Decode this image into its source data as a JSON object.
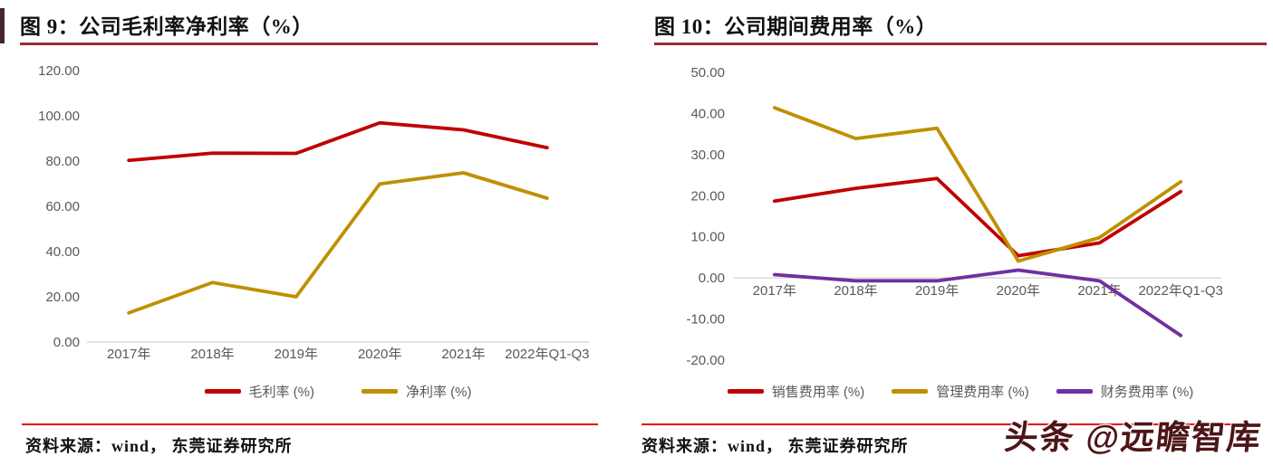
{
  "watermark": {
    "text": "头条 @远瞻智库",
    "color": "#4d1518"
  },
  "colors": {
    "title_underline": "#9c2b31",
    "source_divider": "#e8000d",
    "axis_line": "#d2d2d2",
    "tick_text": "#595959",
    "red_series": "#c00000",
    "gold_series": "#bf9000",
    "purple_series": "#7030a0"
  },
  "panels": [
    {
      "title": "图 9：公司毛利率净利率（%）",
      "source": "资料来源：wind， 东莞证券研究所"
    },
    {
      "title": "图 10：公司期间费用率（%）",
      "source": "资料来源：wind， 东莞证券研究所"
    }
  ],
  "chart_data": [
    {
      "type": "line",
      "title": "公司毛利率净利率（%）",
      "categories": [
        "2017年",
        "2018年",
        "2019年",
        "2020年",
        "2021年",
        "2022年Q1-Q3"
      ],
      "series": [
        {
          "name": "毛利率 (%)",
          "color": "#c00000",
          "values": [
            80.3,
            83.5,
            83.4,
            96.9,
            93.8,
            85.9
          ]
        },
        {
          "name": "净利率 (%)",
          "color": "#bf9000",
          "values": [
            12.9,
            26.3,
            20.0,
            69.9,
            74.8,
            63.6
          ]
        }
      ],
      "xlabel": "",
      "ylabel": "",
      "ylim": [
        0,
        120
      ],
      "ytick_step": 20,
      "ytick_format": "2dp",
      "grid": false,
      "legend_position": "bottom"
    },
    {
      "type": "line",
      "title": "公司期间费用率（%）",
      "categories": [
        "2017年",
        "2018年",
        "2019年",
        "2020年",
        "2021年",
        "2022年Q1-Q3"
      ],
      "series": [
        {
          "name": "销售费用率 (%)",
          "color": "#c00000",
          "values": [
            18.7,
            21.8,
            24.2,
            5.4,
            8.5,
            21.0
          ]
        },
        {
          "name": "管理费用率 (%)",
          "color": "#bf9000",
          "values": [
            41.4,
            33.9,
            36.4,
            4.1,
            9.8,
            23.4
          ]
        },
        {
          "name": "财务费用率 (%)",
          "color": "#7030a0",
          "values": [
            0.8,
            -0.7,
            -0.7,
            1.9,
            -0.7,
            -14.0
          ]
        }
      ],
      "xlabel": "",
      "ylabel": "",
      "ylim": [
        -20,
        50
      ],
      "ytick_step": 10,
      "ytick_format": "2dp",
      "grid": false,
      "legend_position": "bottom"
    }
  ]
}
